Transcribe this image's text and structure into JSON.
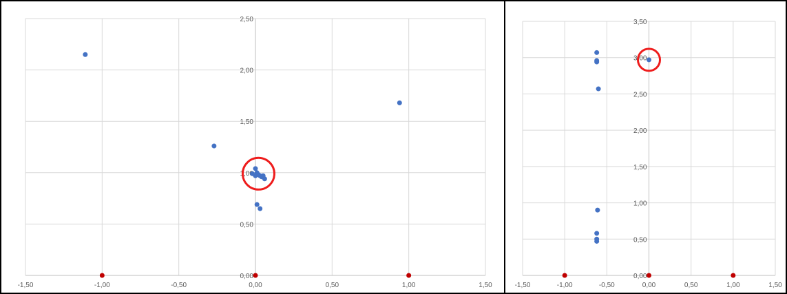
{
  "chart_data": [
    {
      "type": "scatter",
      "title": "",
      "xlabel": "",
      "ylabel": "",
      "xlim": [
        -1.5,
        1.5
      ],
      "ylim": [
        0,
        2.5
      ],
      "x_ticks": [
        "-1,50",
        "-1,00",
        "-0,50",
        "0,00",
        "0,50",
        "1,00",
        "1,50"
      ],
      "y_ticks": [
        "0,00",
        "0,50",
        "1,00",
        "1,50",
        "2,00",
        "2,50"
      ],
      "grid": true,
      "legend": "none",
      "series": [
        {
          "color": "#4472c4",
          "points": [
            {
              "x": -1.11,
              "y": 2.15
            },
            {
              "x": -0.27,
              "y": 1.26
            },
            {
              "x": 0.94,
              "y": 1.68
            },
            {
              "x": -0.02,
              "y": 0.99
            },
            {
              "x": 0.0,
              "y": 1.04
            },
            {
              "x": 0.01,
              "y": 1.0
            },
            {
              "x": 0.0,
              "y": 0.97
            },
            {
              "x": 0.02,
              "y": 0.98
            },
            {
              "x": 0.03,
              "y": 0.97
            },
            {
              "x": 0.04,
              "y": 0.96
            },
            {
              "x": 0.05,
              "y": 0.97
            },
            {
              "x": 0.06,
              "y": 0.94
            },
            {
              "x": 0.01,
              "y": 0.69
            },
            {
              "x": 0.03,
              "y": 0.65
            }
          ]
        },
        {
          "color": "#c00000",
          "points": [
            {
              "x": -1.0,
              "y": 0.0
            },
            {
              "x": 0.0,
              "y": 0.0
            },
            {
              "x": 1.0,
              "y": 0.0
            }
          ]
        }
      ],
      "annotations": [
        {
          "shape": "circle",
          "color": "#ee1c1c",
          "x": 0.02,
          "y": 0.99
        }
      ]
    },
    {
      "type": "scatter",
      "title": "",
      "xlabel": "",
      "ylabel": "",
      "xlim": [
        -1.5,
        1.5
      ],
      "ylim": [
        0,
        3.5
      ],
      "x_ticks": [
        "-1,50",
        "-1,00",
        "-0,50",
        "0,00",
        "0,50",
        "1,00",
        "1,50"
      ],
      "y_ticks": [
        "0,00",
        "0,50",
        "1,00",
        "1,50",
        "2,00",
        "2,50",
        "3,00",
        "3,50"
      ],
      "grid": true,
      "legend": "none",
      "series": [
        {
          "color": "#4472c4",
          "points": [
            {
              "x": -0.62,
              "y": 3.07
            },
            {
              "x": -0.62,
              "y": 2.96
            },
            {
              "x": -0.62,
              "y": 2.94
            },
            {
              "x": -0.6,
              "y": 2.57
            },
            {
              "x": -0.61,
              "y": 0.9
            },
            {
              "x": -0.62,
              "y": 0.58
            },
            {
              "x": -0.62,
              "y": 0.5
            },
            {
              "x": -0.62,
              "y": 0.47
            },
            {
              "x": 0.0,
              "y": 2.97
            }
          ]
        },
        {
          "color": "#c00000",
          "points": [
            {
              "x": -1.0,
              "y": 0.0
            },
            {
              "x": 0.0,
              "y": 0.0
            },
            {
              "x": 1.0,
              "y": 0.0
            }
          ]
        }
      ],
      "annotations": [
        {
          "shape": "circle",
          "color": "#ee1c1c",
          "x": 0.0,
          "y": 2.97
        }
      ]
    }
  ]
}
